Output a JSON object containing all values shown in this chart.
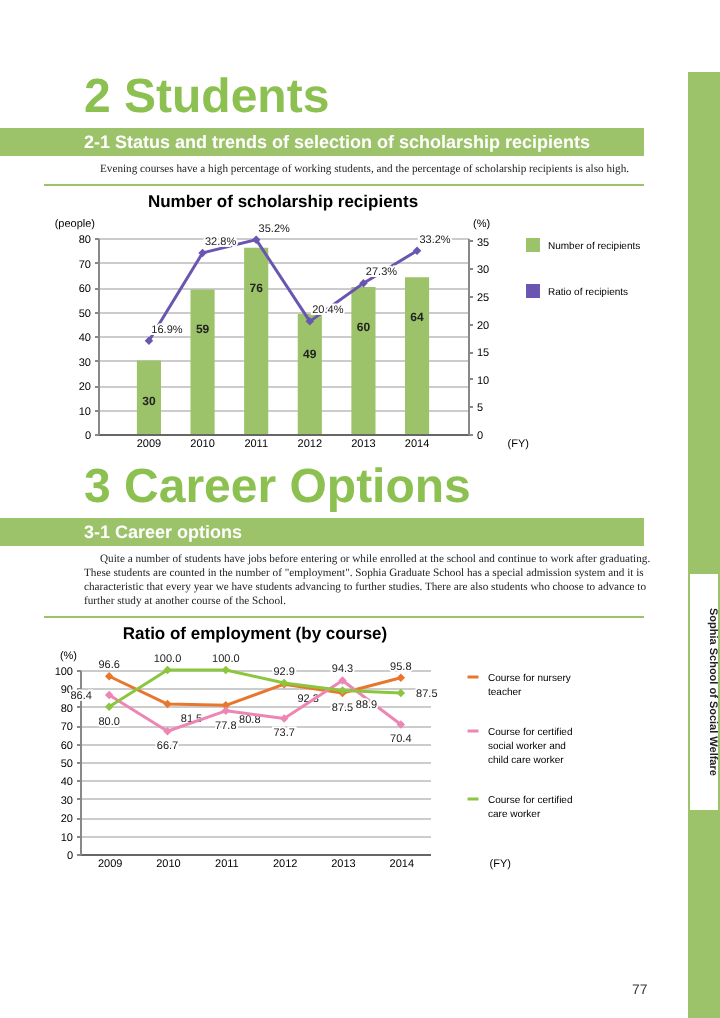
{
  "chart_data": [
    {
      "type": "bar",
      "title": "Number of scholarship recipients",
      "annotations": [
        "2 Students",
        "2-1 Status and trends of selection of scholarship recipients",
        "Evening courses have a high percentage of working students, and the percentage of scholarship recipients is also high."
      ],
      "categories": [
        "2009",
        "2010",
        "2011",
        "2012",
        "2013",
        "2014"
      ],
      "xlabel": "(FY)",
      "ylabel": "(people)",
      "y2label": "(%)",
      "ylim": [
        0,
        80
      ],
      "yticks": [
        0,
        10,
        20,
        30,
        40,
        50,
        60,
        70,
        80
      ],
      "y2lim": [
        0,
        35.5
      ],
      "y2ticks": [
        0,
        5,
        10,
        15,
        20,
        25,
        30,
        35
      ],
      "grid": "y",
      "legend": "right",
      "marker": "diamond",
      "series": [
        {
          "name": "Number of recipients",
          "type": "bar",
          "color": "#9dc36a",
          "values": [
            30,
            59,
            76,
            49,
            60,
            64
          ],
          "value_labels": [
            "30",
            "59",
            "76",
            "49",
            "60",
            "64"
          ]
        },
        {
          "name": "Ratio of recipients",
          "type": "line",
          "axis": "y2",
          "color": "#6a55b0",
          "values": [
            16.9,
            32.8,
            35.2,
            20.4,
            27.3,
            33.2
          ],
          "value_labels": [
            "16.9%",
            "32.8%",
            "35.2%",
            "20.4%",
            "27.3%",
            "33.2%"
          ]
        }
      ]
    },
    {
      "type": "line",
      "title": "Ratio of employment (by course)",
      "annotations": [
        "3 Career Options",
        "3-1 Career options",
        "Quite a number of students have jobs before entering or while enrolled at the school and continue to work after graduating. These students are counted in the number of \"employment\". Sophia Graduate School has a special admission system and it is characteristic that every year we have students advancing to further studies. There are also students who choose to advance to further study at another course of the School.",
        "Sophia School of Social Welfare",
        "77"
      ],
      "categories": [
        "2009",
        "2010",
        "2011",
        "2012",
        "2013",
        "2014"
      ],
      "xlabel": "(FY)",
      "ylabel": "(%)",
      "ylim": [
        0,
        100
      ],
      "yticks": [
        0,
        10,
        20,
        30,
        40,
        50,
        60,
        70,
        80,
        90,
        100
      ],
      "grid": "y",
      "legend": "right",
      "marker": "diamond",
      "series": [
        {
          "name": "Course for nursery teacher",
          "color": "#e8772e",
          "values": [
            96.6,
            81.5,
            80.8,
            92.3,
            87.5,
            95.8
          ],
          "value_labels": [
            "96.6",
            "81.5",
            "80.8",
            "92.3",
            "87.5",
            "95.8"
          ]
        },
        {
          "name": "Course for certified social worker and child care worker",
          "color": "#ee86b4",
          "values": [
            86.4,
            66.7,
            77.8,
            73.7,
            94.3,
            70.4
          ],
          "value_labels": [
            "86.4",
            "66.7",
            "77.8",
            "73.7",
            "94.3",
            "70.4"
          ]
        },
        {
          "name": "Course for certified care worker",
          "color": "#8cc63f",
          "values": [
            80.0,
            100.0,
            100.0,
            92.9,
            88.9,
            87.5
          ],
          "value_labels": [
            "80.0",
            "100.0",
            "100.0",
            "92.9",
            "88.9",
            "87.5"
          ]
        }
      ]
    }
  ]
}
